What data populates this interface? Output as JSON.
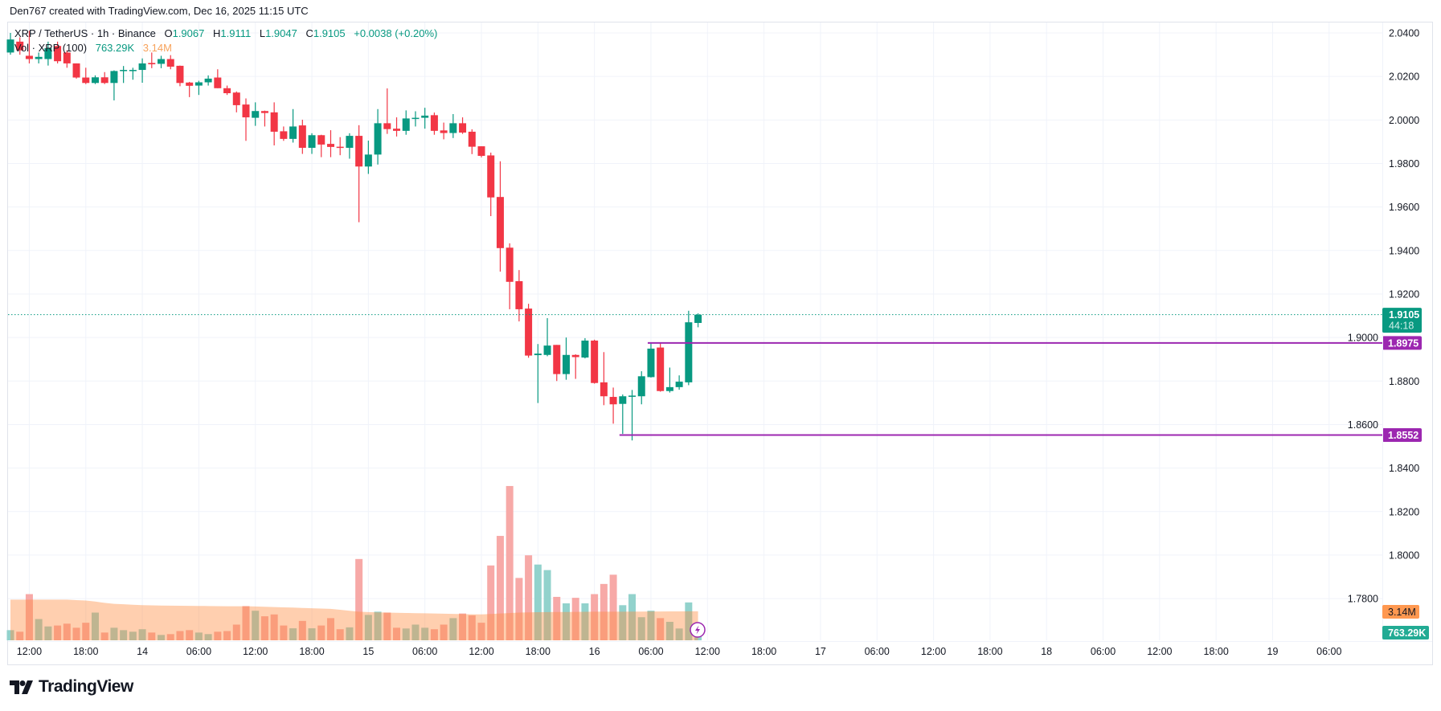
{
  "header": {
    "attribution": "Den767 created with TradingView.com, Dec 16, 2025 11:15 UTC"
  },
  "legend": {
    "symbol": "XRP / TetherUS · 1h · Binance",
    "o_label": "O",
    "open": "1.9067",
    "h_label": "H",
    "high": "1.9111",
    "l_label": "L",
    "low": "1.9047",
    "c_label": "C",
    "close": "1.9105",
    "change": "+0.0038 (+0.20%)",
    "volume_title": "Vol · XRP (100)",
    "volume_value": "763.29K",
    "volume_ma_value": "3.14M"
  },
  "price_axis": {
    "labels": [
      "2.0400",
      "2.0200",
      "2.0000",
      "1.9800",
      "1.9600",
      "1.9400",
      "1.9200",
      "1.9000",
      "1.8800",
      "1.8600",
      "1.8400",
      "1.8200",
      "1.8000",
      "1.7800"
    ],
    "last_price": "1.9105",
    "countdown": "44:18",
    "volume_ma_badge": "3.14M",
    "volume_badge": "763.29K"
  },
  "time_axis": {
    "labels": [
      "12:00",
      "18:00",
      "14",
      "06:00",
      "12:00",
      "18:00",
      "15",
      "06:00",
      "12:00",
      "18:00",
      "16",
      "06:00",
      "12:00",
      "18:00",
      "17",
      "06:00",
      "12:00",
      "18:00",
      "18",
      "06:00",
      "12:00",
      "18:00",
      "19",
      "06:00"
    ]
  },
  "horizontal_lines": [
    {
      "price": 1.8975,
      "label": "1.8975",
      "from_time": "2025-12-16T06:00"
    },
    {
      "price": 1.8552,
      "label": "1.8552",
      "from_time": "2025-12-16T03:00"
    }
  ],
  "colors": {
    "up": "#089981",
    "down": "#f23645",
    "line": "#9c27b0",
    "volume_up": "#92d2cc",
    "volume_down": "#f7a9a7",
    "volume_ma": "#ff8c40"
  },
  "logo": {
    "text": "TradingView"
  },
  "chart_data": {
    "type": "candlestick",
    "symbol": "XRP / TetherUS",
    "interval": "1h",
    "exchange": "Binance",
    "ylim": [
      1.77,
      2.045
    ],
    "grid": true,
    "volume_unit": "M",
    "columns": [
      "time",
      "open",
      "high",
      "low",
      "close",
      "volume"
    ],
    "candles": [
      [
        "2025-12-13T10:00",
        2.031,
        2.04,
        2.03,
        2.037,
        1.1
      ],
      [
        "2025-12-13T11:00",
        2.036,
        2.038,
        2.03,
        2.032,
        0.93
      ],
      [
        "2025-12-13T12:00",
        2.0295,
        2.041,
        2.026,
        2.028,
        5.0
      ],
      [
        "2025-12-13T13:00",
        2.028,
        2.031,
        2.026,
        2.029,
        2.3
      ],
      [
        "2025-12-13T14:00",
        2.028,
        2.036,
        2.025,
        2.033,
        1.5
      ],
      [
        "2025-12-13T15:00",
        2.034,
        2.036,
        2.026,
        2.027,
        1.6
      ],
      [
        "2025-12-13T16:00",
        2.031,
        2.032,
        2.024,
        2.026,
        1.8
      ],
      [
        "2025-12-13T17:00",
        2.026,
        2.026,
        2.019,
        2.0195,
        1.36
      ],
      [
        "2025-12-13T18:00",
        2.0195,
        2.024,
        2.0165,
        2.017,
        1.9
      ],
      [
        "2025-12-13T19:00",
        2.017,
        2.0205,
        2.0165,
        2.0196,
        3.0
      ],
      [
        "2025-12-13T20:00",
        2.0196,
        2.022,
        2.0165,
        2.017,
        0.84
      ],
      [
        "2025-12-13T21:00",
        2.017,
        2.0228,
        2.009,
        2.0225,
        1.36
      ],
      [
        "2025-12-13T22:00",
        2.0225,
        2.0248,
        2.017,
        2.023,
        1.1
      ],
      [
        "2025-12-13T23:00",
        2.0225,
        2.024,
        2.0185,
        2.023,
        0.93
      ],
      [
        "2025-12-14T00:00",
        2.023,
        2.0283,
        2.0171,
        2.026,
        1.2
      ],
      [
        "2025-12-14T01:00",
        2.0262,
        2.031,
        2.0238,
        2.0256,
        0.84
      ],
      [
        "2025-12-14T02:00",
        2.0258,
        2.0295,
        2.0238,
        2.028,
        0.58
      ],
      [
        "2025-12-14T03:00",
        2.028,
        2.0298,
        2.0233,
        2.0245,
        0.67
      ],
      [
        "2025-12-14T04:00",
        2.0249,
        2.025,
        2.0155,
        2.017,
        1.0
      ],
      [
        "2025-12-14T05:00",
        2.0172,
        2.0175,
        2.0105,
        2.0157,
        1.1
      ],
      [
        "2025-12-14T06:00",
        2.0158,
        2.018,
        2.0115,
        2.0173,
        0.84
      ],
      [
        "2025-12-14T07:00",
        2.0173,
        2.0205,
        2.0158,
        2.019,
        0.67
      ],
      [
        "2025-12-14T08:00",
        2.0195,
        2.0233,
        2.0146,
        2.0146,
        0.93
      ],
      [
        "2025-12-14T09:00",
        2.0146,
        2.0158,
        2.0115,
        2.0123,
        1.0
      ],
      [
        "2025-12-14T10:00",
        2.0126,
        2.0131,
        2.0035,
        2.0068,
        1.7
      ],
      [
        "2025-12-14T11:00",
        2.0071,
        2.0099,
        1.9904,
        2.0012,
        3.7
      ],
      [
        "2025-12-14T12:00",
        2.001,
        2.0081,
        1.9973,
        2.0041,
        3.2
      ],
      [
        "2025-12-14T13:00",
        2.0041,
        2.0043,
        1.997,
        2.0032,
        2.6
      ],
      [
        "2025-12-14T14:00",
        2.0035,
        2.0081,
        1.9883,
        1.9946,
        2.8
      ],
      [
        "2025-12-14T15:00",
        1.9948,
        1.997,
        1.9904,
        1.9913,
        1.6
      ],
      [
        "2025-12-14T16:00",
        1.9913,
        2.005,
        1.9896,
        1.997,
        1.3
      ],
      [
        "2025-12-14T17:00",
        1.9975,
        2.0001,
        1.9844,
        1.9872,
        2.1
      ],
      [
        "2025-12-14T18:00",
        1.9872,
        1.9939,
        1.9844,
        1.993,
        1.3
      ],
      [
        "2025-12-14T19:00",
        1.993,
        1.9932,
        1.9829,
        1.9887,
        1.6
      ],
      [
        "2025-12-14T20:00",
        1.989,
        1.9953,
        1.9829,
        1.9876,
        2.4
      ],
      [
        "2025-12-14T21:00",
        1.9877,
        1.9921,
        1.9838,
        1.9876,
        1.2
      ],
      [
        "2025-12-14T22:00",
        1.9872,
        1.9939,
        1.9822,
        1.9927,
        1.4
      ],
      [
        "2025-12-14T23:00",
        1.9927,
        1.9976,
        1.953,
        1.9786,
        8.8
      ],
      [
        "2025-12-15T00:00",
        1.9786,
        1.9905,
        1.9752,
        1.9841,
        2.75
      ],
      [
        "2025-12-15T01:00",
        1.9841,
        2.005,
        1.9795,
        1.9985,
        3.1
      ],
      [
        "2025-12-15T02:00",
        1.9985,
        2.0145,
        1.9936,
        1.9958,
        3.0
      ],
      [
        "2025-12-15T03:00",
        1.996,
        2.0012,
        1.9924,
        1.995,
        1.36
      ],
      [
        "2025-12-15T04:00",
        1.995,
        2.0044,
        1.9932,
        2.0007,
        1.28
      ],
      [
        "2025-12-15T05:00",
        2.0007,
        2.004,
        1.997,
        2.001,
        1.7
      ],
      [
        "2025-12-15T06:00",
        2.001,
        2.0056,
        1.996,
        2.002,
        1.36
      ],
      [
        "2025-12-15T07:00",
        2.0022,
        2.0034,
        1.9932,
        1.995,
        1.2
      ],
      [
        "2025-12-15T08:00",
        1.9952,
        1.9988,
        1.9911,
        1.994,
        1.7
      ],
      [
        "2025-12-15T09:00",
        1.994,
        2.0027,
        1.9917,
        1.9985,
        2.4
      ],
      [
        "2025-12-15T10:00",
        1.9985,
        2.0012,
        1.9936,
        1.9942,
        2.9
      ],
      [
        "2025-12-15T11:00",
        1.9946,
        1.9957,
        1.9843,
        1.9877,
        2.7
      ],
      [
        "2025-12-15T12:00",
        1.9879,
        1.9879,
        1.9828,
        1.9835,
        1.9
      ],
      [
        "2025-12-15T13:00",
        1.9837,
        1.985,
        1.9558,
        1.9644,
        8.1
      ],
      [
        "2025-12-15T14:00",
        1.9646,
        1.981,
        1.9303,
        1.9411,
        11.3
      ],
      [
        "2025-12-15T15:00",
        1.9413,
        1.9433,
        1.913,
        1.9256,
        16.7
      ],
      [
        "2025-12-15T16:00",
        1.9259,
        1.931,
        1.9074,
        1.913,
        6.75
      ],
      [
        "2025-12-15T17:00",
        1.9133,
        1.9155,
        1.8907,
        1.8917,
        9.2
      ],
      [
        "2025-12-15T18:00",
        1.8919,
        1.897,
        1.8699,
        1.8926,
        8.2
      ],
      [
        "2025-12-15T19:00",
        1.892,
        1.9089,
        1.8914,
        1.8963,
        7.6
      ],
      [
        "2025-12-15T20:00",
        1.8966,
        1.8966,
        1.88,
        1.8832,
        4.7
      ],
      [
        "2025-12-15T21:00",
        1.8832,
        1.9,
        1.8806,
        1.892,
        4.0
      ],
      [
        "2025-12-15T22:00",
        1.892,
        1.8923,
        1.881,
        1.891,
        4.6
      ],
      [
        "2025-12-15T23:00",
        1.8908,
        1.8997,
        1.8904,
        1.8986,
        4.0
      ],
      [
        "2025-12-16T00:00",
        1.8986,
        1.899,
        1.8788,
        1.8791,
        5.0
      ],
      [
        "2025-12-16T01:00",
        1.8794,
        1.8933,
        1.8689,
        1.873,
        6.1
      ],
      [
        "2025-12-16T02:00",
        1.8727,
        1.877,
        1.8604,
        1.8693,
        7.1
      ],
      [
        "2025-12-16T03:00",
        1.8695,
        1.8738,
        1.8557,
        1.873,
        3.8
      ],
      [
        "2025-12-16T04:00",
        1.8731,
        1.8759,
        1.8527,
        1.8733,
        5.0
      ],
      [
        "2025-12-16T05:00",
        1.873,
        1.8845,
        1.8693,
        1.8822,
        2.5
      ],
      [
        "2025-12-16T06:00",
        1.8818,
        1.8978,
        1.8816,
        1.8949,
        3.2
      ],
      [
        "2025-12-16T07:00",
        1.8954,
        1.8978,
        1.8751,
        1.8754,
        2.4
      ],
      [
        "2025-12-16T08:00",
        1.8754,
        1.8862,
        1.8747,
        1.8772,
        2.0
      ],
      [
        "2025-12-16T09:00",
        1.8772,
        1.8826,
        1.876,
        1.8797,
        1.28
      ],
      [
        "2025-12-16T10:00",
        1.8794,
        1.9123,
        1.8781,
        1.907,
        4.1
      ],
      [
        "2025-12-16T11:00",
        1.9067,
        1.9111,
        1.9047,
        1.9105,
        0.76329
      ]
    ],
    "volume_ma_period": 100,
    "volume_ma": [
      4.4,
      4.4,
      4.4,
      4.4,
      4.4,
      4.4,
      4.4,
      4.35,
      4.3,
      4.2,
      4.05,
      3.95,
      3.9,
      3.85,
      3.8,
      3.78,
      3.76,
      3.75,
      3.74,
      3.73,
      3.72,
      3.71,
      3.7,
      3.69,
      3.68,
      3.68,
      3.66,
      3.63,
      3.6,
      3.57,
      3.54,
      3.5,
      3.47,
      3.43,
      3.4,
      3.3,
      3.2,
      3.1,
      3.05,
      3.02,
      3.0,
      2.98,
      2.96,
      2.94,
      2.92,
      2.9,
      2.88,
      2.86,
      2.84,
      2.82,
      2.8,
      2.85,
      2.9,
      2.95,
      3.0,
      3.02,
      3.04,
      3.05,
      3.06,
      3.07,
      3.08,
      3.09,
      3.1,
      3.1,
      3.1,
      3.1,
      3.11,
      3.11,
      3.12,
      3.12,
      3.13,
      3.13,
      3.14,
      3.14
    ]
  }
}
